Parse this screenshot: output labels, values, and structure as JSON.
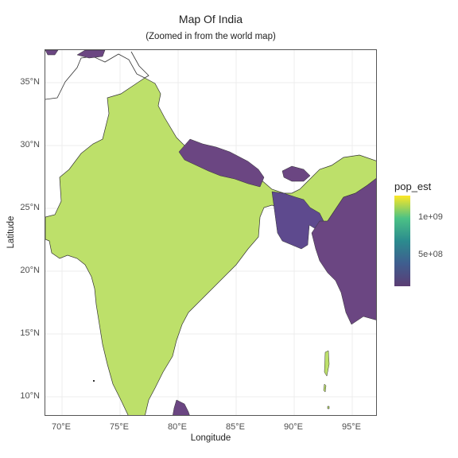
{
  "title": "Map Of India",
  "subtitle": "(Zoomed in from the world map)",
  "xlabel": "Longitude",
  "ylabel": "Latitude",
  "xticks": [
    "70°E",
    "75°E",
    "80°E",
    "85°E",
    "90°E",
    "95°E"
  ],
  "yticks": [
    "35°N",
    "30°N",
    "25°N",
    "20°N",
    "15°N",
    "10°N"
  ],
  "legend": {
    "title": "pop_est",
    "labels": [
      "1e+09",
      "5e+08"
    ]
  },
  "colors": {
    "india": "#bde06a",
    "nepal": "#6b4682",
    "bangladesh": "#5e4a8e",
    "myanmar": "#6b4682",
    "bhutan": "#6b4682",
    "pakistan": "#bde06a",
    "china_top": "#6b4682"
  },
  "chart_data": {
    "type": "map",
    "title": "Map Of India",
    "subtitle": "(Zoomed in from the world map)",
    "xlabel": "Longitude",
    "ylabel": "Latitude",
    "xlim": [
      68.7,
      97.3
    ],
    "ylim": [
      8.5,
      37.5
    ],
    "legend": {
      "title": "pop_est",
      "ticks": [
        1000000000,
        500000000
      ],
      "position": "right"
    },
    "grid": true
  }
}
